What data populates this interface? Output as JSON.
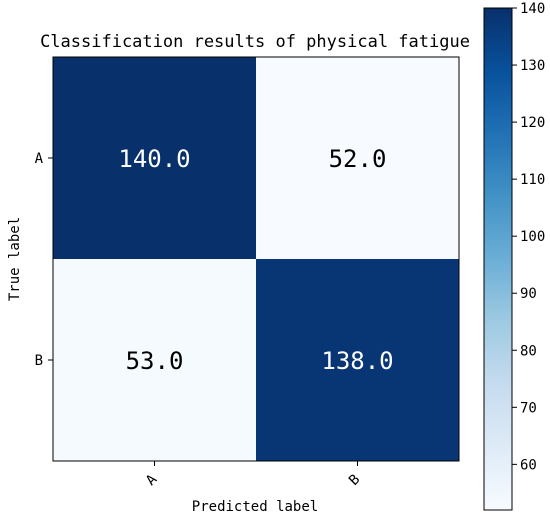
{
  "chart_data": {
    "type": "heatmap",
    "title": "Classification results of physical fatigue",
    "xlabel": "Predicted label",
    "ylabel": "True label",
    "x_categories": [
      "A",
      "B"
    ],
    "y_categories": [
      "A",
      "B"
    ],
    "matrix": [
      [
        140.0,
        52.0
      ],
      [
        53.0,
        138.0
      ]
    ],
    "cell_labels": [
      [
        "140.0",
        "52.0"
      ],
      [
        "53.0",
        "138.0"
      ]
    ],
    "colorbar": {
      "range": [
        52,
        140
      ],
      "ticks": [
        60,
        70,
        80,
        90,
        100,
        110,
        120,
        130,
        140
      ],
      "tick_labels": [
        "60",
        "70",
        "80",
        "90",
        "100",
        "110",
        "120",
        "130",
        "140"
      ]
    },
    "colormap": "Blues",
    "colors": {
      "low": "#f7fbff",
      "high": "#08306b",
      "text_on_dark": "#ffffff",
      "text_on_light": "#000000"
    }
  }
}
